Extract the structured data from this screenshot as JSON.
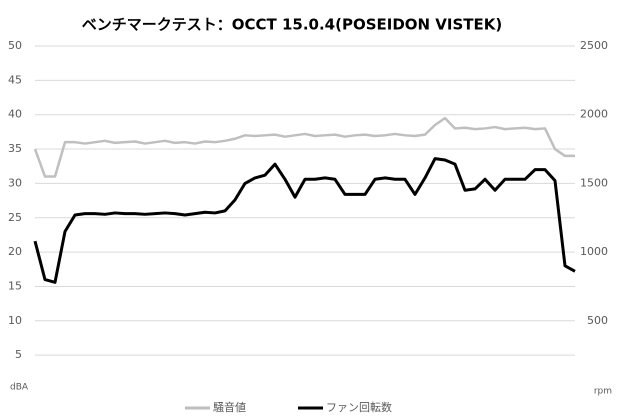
{
  "chart_data": {
    "type": "line",
    "title": "ベンチマークテスト：OCCT 15.0.4(POSEIDON VISTEK)",
    "ylabel": "dBA",
    "y2label": "rpm",
    "categories": [
      null,
      null,
      null,
      null,
      null,
      null,
      null,
      null,
      null,
      null,
      null,
      null,
      null,
      null,
      null,
      null,
      null,
      null,
      null,
      null,
      null,
      null,
      null,
      null,
      null,
      null,
      null,
      null,
      null,
      null,
      null,
      null,
      null,
      null,
      null,
      null,
      null,
      null,
      null,
      null,
      null,
      null,
      null,
      null,
      null,
      null,
      null,
      null,
      null,
      null,
      null,
      null,
      null,
      null,
      null
    ],
    "series": [
      {
        "name": "騒音値",
        "color": "#bfbfbf",
        "axis": "y",
        "values": [
          35,
          31,
          31,
          36,
          36,
          35.8,
          36,
          36.2,
          35.9,
          36,
          36.1,
          35.8,
          36,
          36.2,
          35.9,
          36,
          35.8,
          36.1,
          36,
          36.2,
          36.5,
          37,
          36.9,
          37,
          37.1,
          36.8,
          37,
          37.2,
          36.9,
          37,
          37.1,
          36.8,
          37,
          37.1,
          36.9,
          37,
          37.2,
          37,
          36.9,
          37.1,
          38.5,
          39.5,
          38,
          38.1,
          37.9,
          38,
          38.2,
          37.9,
          38,
          38.1,
          37.9,
          38,
          35,
          34,
          34
        ]
      },
      {
        "name": "ファン回転数",
        "color": "#000000",
        "axis": "y2",
        "values": [
          1080,
          800,
          780,
          1150,
          1270,
          1280,
          1280,
          1275,
          1285,
          1280,
          1280,
          1275,
          1280,
          1285,
          1280,
          1270,
          1280,
          1290,
          1285,
          1300,
          1380,
          1500,
          1540,
          1560,
          1640,
          1530,
          1400,
          1530,
          1530,
          1540,
          1530,
          1420,
          1420,
          1420,
          1530,
          1540,
          1530,
          1530,
          1420,
          1540,
          1680,
          1670,
          1640,
          1450,
          1460,
          1530,
          1450,
          1530,
          1530,
          1530,
          1600,
          1600,
          1520,
          900,
          860
        ]
      }
    ],
    "ylim": [
      0,
      50
    ],
    "yticks": [
      5,
      10,
      15,
      20,
      25,
      30,
      35,
      40,
      45,
      50
    ],
    "y2lim": [
      0,
      2500
    ],
    "y2ticks": [
      500,
      1000,
      1500,
      2000,
      2500
    ],
    "grid": true,
    "legend": "bottom"
  }
}
